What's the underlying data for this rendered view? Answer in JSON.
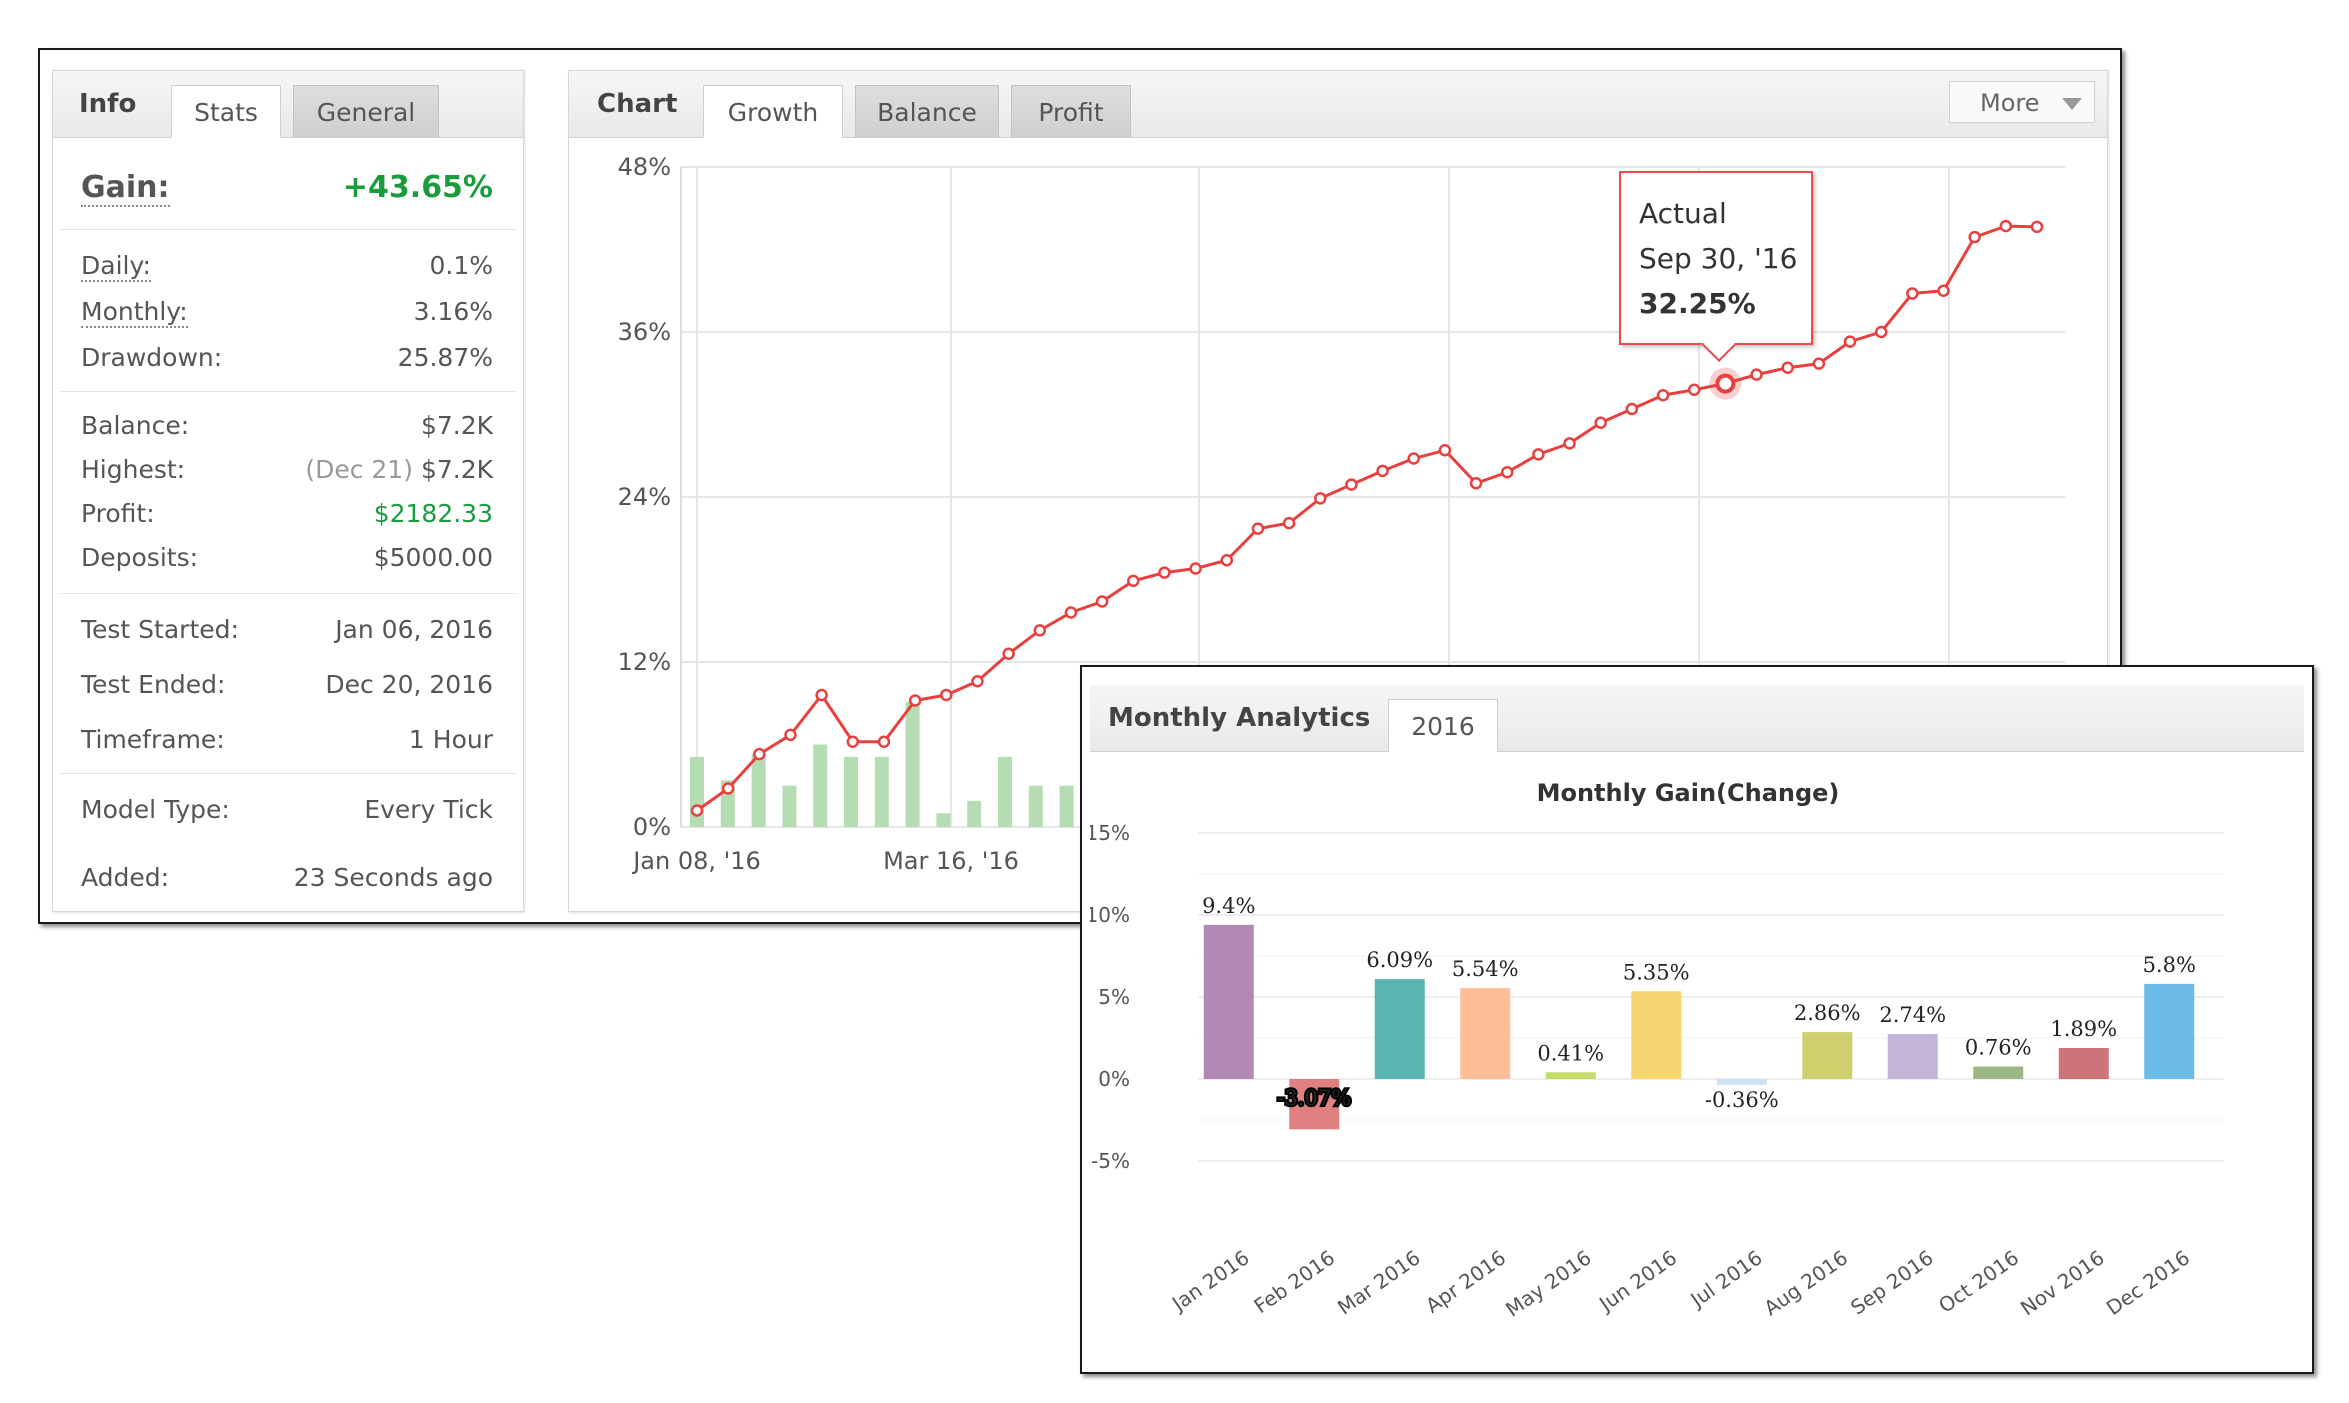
{
  "info_panel": {
    "tabs": [
      {
        "label": "Info",
        "type": "title"
      },
      {
        "label": "Stats",
        "active": true
      },
      {
        "label": "General",
        "active": false
      }
    ],
    "gain": {
      "label": "Gain:",
      "value": "+43.65%"
    },
    "daily": {
      "label": "Daily:",
      "value": "0.1%"
    },
    "monthly": {
      "label": "Monthly:",
      "value": "3.16%"
    },
    "drawdown": {
      "label": "Drawdown:",
      "value": "25.87%"
    },
    "balance": {
      "label": "Balance:",
      "value": "$7.2K"
    },
    "highest": {
      "label": "Highest:",
      "date": "(Dec 21)",
      "value": "$7.2K"
    },
    "profit": {
      "label": "Profit:",
      "value": "$2182.33"
    },
    "deposits": {
      "label": "Deposits:",
      "value": "$5000.00"
    },
    "test_started": {
      "label": "Test Started:",
      "value": "Jan 06, 2016"
    },
    "test_ended": {
      "label": "Test Ended:",
      "value": "Dec 20, 2016"
    },
    "timeframe": {
      "label": "Timeframe:",
      "value": "1 Hour"
    },
    "model_type": {
      "label": "Model Type:",
      "value": "Every Tick"
    },
    "added": {
      "label": "Added:",
      "value": "23 Seconds ago"
    }
  },
  "chart_panel": {
    "title": "Chart",
    "tabs": [
      {
        "label": "Growth",
        "active": true
      },
      {
        "label": "Balance",
        "active": false
      },
      {
        "label": "Profit",
        "active": false
      }
    ],
    "more_label": "More",
    "tooltip": {
      "series": "Actual",
      "date": "Sep 30, '16",
      "value": "32.25%"
    },
    "colors": {
      "line": "#e8403f",
      "bars": "#b5dcb3",
      "grid": "#e6e6e6"
    }
  },
  "monthly_panel": {
    "title": "Monthly Analytics",
    "tab": "2016",
    "chart_title": "Monthly Gain(Change)"
  },
  "chart_data": [
    {
      "type": "line",
      "y_tick_labels": [
        "0%",
        "12%",
        "24%",
        "36%",
        "48%"
      ],
      "x_tick_labels": [
        "Jan 08, '16",
        "Mar 16, '16"
      ],
      "ylim": [
        0,
        48
      ],
      "grid": true,
      "series": [
        {
          "name": "Actual",
          "values": [
            1.2,
            2.8,
            5.3,
            6.7,
            9.6,
            6.2,
            6.2,
            9.2,
            9.6,
            10.6,
            12.6,
            14.3,
            15.6,
            16.4,
            17.9,
            18.5,
            18.8,
            19.4,
            21.7,
            22.1,
            23.9,
            24.9,
            25.9,
            26.8,
            27.4,
            25.0,
            25.8,
            27.1,
            27.9,
            29.4,
            30.4,
            31.4,
            31.8,
            32.25,
            32.9,
            33.4,
            33.7,
            35.3,
            36.0,
            38.8,
            39.0,
            42.9,
            43.7,
            43.65
          ]
        }
      ],
      "bars": {
        "values": [
          5.1,
          3.4,
          5.3,
          3.0,
          6.0,
          5.1,
          5.1,
          9.1,
          1.0,
          1.9,
          5.1,
          3.0,
          3.0
        ]
      }
    },
    {
      "type": "bar",
      "title": "Monthly Gain(Change)",
      "categories": [
        "Jan 2016",
        "Feb 2016",
        "Mar 2016",
        "Apr 2016",
        "May 2016",
        "Jun 2016",
        "Jul 2016",
        "Aug 2016",
        "Sep 2016",
        "Oct 2016",
        "Nov 2016",
        "Dec 2016"
      ],
      "values": [
        9.4,
        -3.07,
        6.09,
        5.54,
        0.41,
        5.35,
        -0.36,
        2.86,
        2.74,
        0.76,
        1.89,
        5.8
      ],
      "labels": [
        "9.4%",
        "-3.07%",
        "6.09%",
        "5.54%",
        "0.41%",
        "5.35%",
        "-0.36%",
        "2.86%",
        "2.74%",
        "0.76%",
        "1.89%",
        "5.8%"
      ],
      "colors": [
        "#b388b5",
        "#e08080",
        "#58b5b0",
        "#ffbe95",
        "#c2dc6a",
        "#f5d670",
        "#cfe2f5",
        "#cfcf6e",
        "#c3b4d8",
        "#9cb884",
        "#cd7479",
        "#6bbbe6"
      ],
      "y_tick_labels": [
        "-5%",
        "0%",
        "5%",
        "10%",
        "15%"
      ],
      "ylim": [
        -5,
        15
      ],
      "grid": true
    }
  ]
}
